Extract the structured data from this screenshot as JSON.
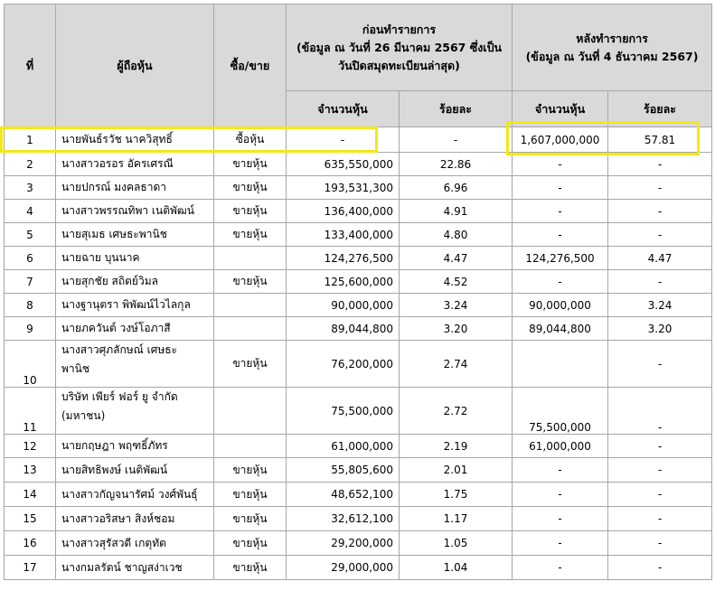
{
  "header": {
    "no": "ที่",
    "holder": "ผู้ถือหุ้น",
    "action": "ซื้อ/ขาย",
    "before_title": "ก่อนทำรายการ",
    "before_sub": "(ข้อมูล ณ วันที่ 26 มีนาคม 2567 ซึ่งเป็นวันปิดสมุดทะเบียนล่าสุด)",
    "after_title": "หลังทำรายการ",
    "after_sub": "(ข้อมูล ณ วันที่ 4 ธันวาคม 2567)",
    "shares": "จำนวนหุ้น",
    "percent": "ร้อยละ"
  },
  "rows": [
    {
      "no": "1",
      "name": "นายพันธ์รวัช นาควิสุทธิ์",
      "action": "ซื้อหุ้น",
      "b_shares": "-",
      "b_pct": "-",
      "a_shares": "1,607,000,000",
      "a_pct": "57.81"
    },
    {
      "no": "2",
      "name": "นางสาวอรอร อัครเศรณี",
      "action": "ขายหุ้น",
      "b_shares": "635,550,000",
      "b_pct": "22.86",
      "a_shares": "-",
      "a_pct": "-"
    },
    {
      "no": "3",
      "name": "นายปกรณ์ มงคลธาดา",
      "action": "ขายหุ้น",
      "b_shares": "193,531,300",
      "b_pct": "6.96",
      "a_shares": "-",
      "a_pct": "-"
    },
    {
      "no": "4",
      "name": "นางสาวพรรณทิพา เนติพัฒน์",
      "action": "ขายหุ้น",
      "b_shares": "136,400,000",
      "b_pct": "4.91",
      "a_shares": "-",
      "a_pct": "-"
    },
    {
      "no": "5",
      "name": "นายสุเมธ เศษธะพานิช",
      "action": "ขายหุ้น",
      "b_shares": "133,400,000",
      "b_pct": "4.80",
      "a_shares": "-",
      "a_pct": "-"
    },
    {
      "no": "6",
      "name": "นายฉาย บุนนาค",
      "action": "",
      "b_shares": "124,276,500",
      "b_pct": "4.47",
      "a_shares": "124,276,500",
      "a_pct": "4.47"
    },
    {
      "no": "7",
      "name": "นายสุกชัย สถิตย์วิมล",
      "action": "ขายหุ้น",
      "b_shares": "125,600,000",
      "b_pct": "4.52",
      "a_shares": "-",
      "a_pct": "-"
    },
    {
      "no": "8",
      "name": "นางฐานุตรา พิพัฒน์ไวไลกุล",
      "action": "",
      "b_shares": "90,000,000",
      "b_pct": "3.24",
      "a_shares": "90,000,000",
      "a_pct": "3.24"
    },
    {
      "no": "9",
      "name": "นายภควันต์ วงษ์โอภาสี",
      "action": "",
      "b_shares": "89,044,800",
      "b_pct": "3.20",
      "a_shares": "89,044,800",
      "a_pct": "3.20"
    },
    {
      "no": "10",
      "name_1": "นางสาวศุภลักษณ์ เศษธะ",
      "name_2": "พานิช",
      "action": "ขายหุ้น",
      "b_shares": "76,200,000",
      "b_pct": "2.74",
      "a_shares": "",
      "a_pct": "-"
    },
    {
      "no": "11",
      "name_1": "บริษัท เพียร์ ฟอร์ ยู จำกัด",
      "name_2": "(มหาชน)",
      "action": "",
      "b_shares": "75,500,000",
      "b_pct": "2.72",
      "a_shares": "75,500,000",
      "a_pct": "-"
    },
    {
      "no": "12",
      "name": "นายกฤษฎา พฤฑธิ์ภัทร",
      "action": "",
      "b_shares": "61,000,000",
      "b_pct": "2.19",
      "a_shares": "61,000,000",
      "a_pct": "-"
    },
    {
      "no": "13",
      "name": "นายสิทธิพงษ์ เนติพัฒน์",
      "action": "ขายหุ้น",
      "b_shares": "55,805,600",
      "b_pct": "2.01",
      "a_shares": "-",
      "a_pct": "-"
    },
    {
      "no": "14",
      "name": "นางสาวกัญจนารัศม์ วงศ์พันธุ์",
      "action": "ขายหุ้น",
      "b_shares": "48,652,100",
      "b_pct": "1.75",
      "a_shares": "-",
      "a_pct": "-"
    },
    {
      "no": "15",
      "name": "นางสาวอริสษา สิงห์ชอม",
      "action": "ขายหุ้น",
      "b_shares": "32,612,100",
      "b_pct": "1.17",
      "a_shares": "-",
      "a_pct": "-"
    },
    {
      "no": "16",
      "name": "นางสาวสุรัสวดี เกตุทัต",
      "action": "ขายหุ้น",
      "b_shares": "29,200,000",
      "b_pct": "1.05",
      "a_shares": "-",
      "a_pct": "-"
    },
    {
      "no": "17",
      "name": "นางกมลรัตน์ ชาญสง่าเวช",
      "action": "ขายหุ้น",
      "b_shares": "29,000,000",
      "b_pct": "1.04",
      "a_shares": "-",
      "a_pct": "-"
    }
  ],
  "highlight_color": "#f5e61a"
}
